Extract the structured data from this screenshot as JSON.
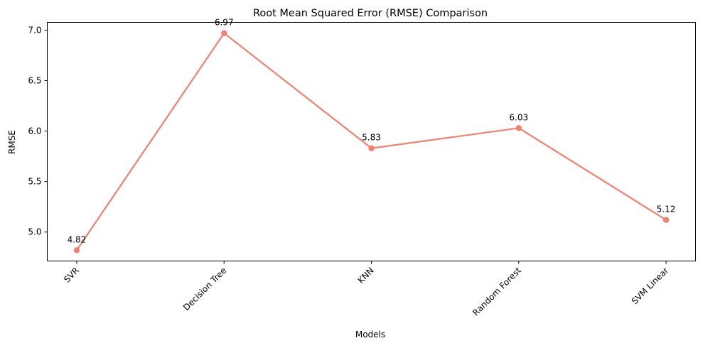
{
  "chart_data": {
    "type": "line",
    "title": "Root Mean Squared Error (RMSE) Comparison",
    "xlabel": "Models",
    "ylabel": "RMSE",
    "categories": [
      "SVR",
      "Decision Tree",
      "KNN",
      "Random Forest",
      "SVM Linear"
    ],
    "values": [
      4.82,
      6.97,
      5.83,
      6.03,
      5.12
    ],
    "data_labels": [
      "4.82",
      "6.97",
      "5.83",
      "6.03",
      "5.12"
    ],
    "yticks": [
      5.0,
      5.5,
      6.0,
      6.5,
      7.0
    ],
    "ytick_labels": [
      "5.0",
      "5.5",
      "6.0",
      "6.5",
      "7.0"
    ],
    "ylim": [
      4.713,
      7.077
    ],
    "x_tick_rotation": "45 degrees",
    "grid": false,
    "legend": "none",
    "colors": {
      "line": "#f28072",
      "marker": "#f28072",
      "axes": "#000000"
    }
  }
}
